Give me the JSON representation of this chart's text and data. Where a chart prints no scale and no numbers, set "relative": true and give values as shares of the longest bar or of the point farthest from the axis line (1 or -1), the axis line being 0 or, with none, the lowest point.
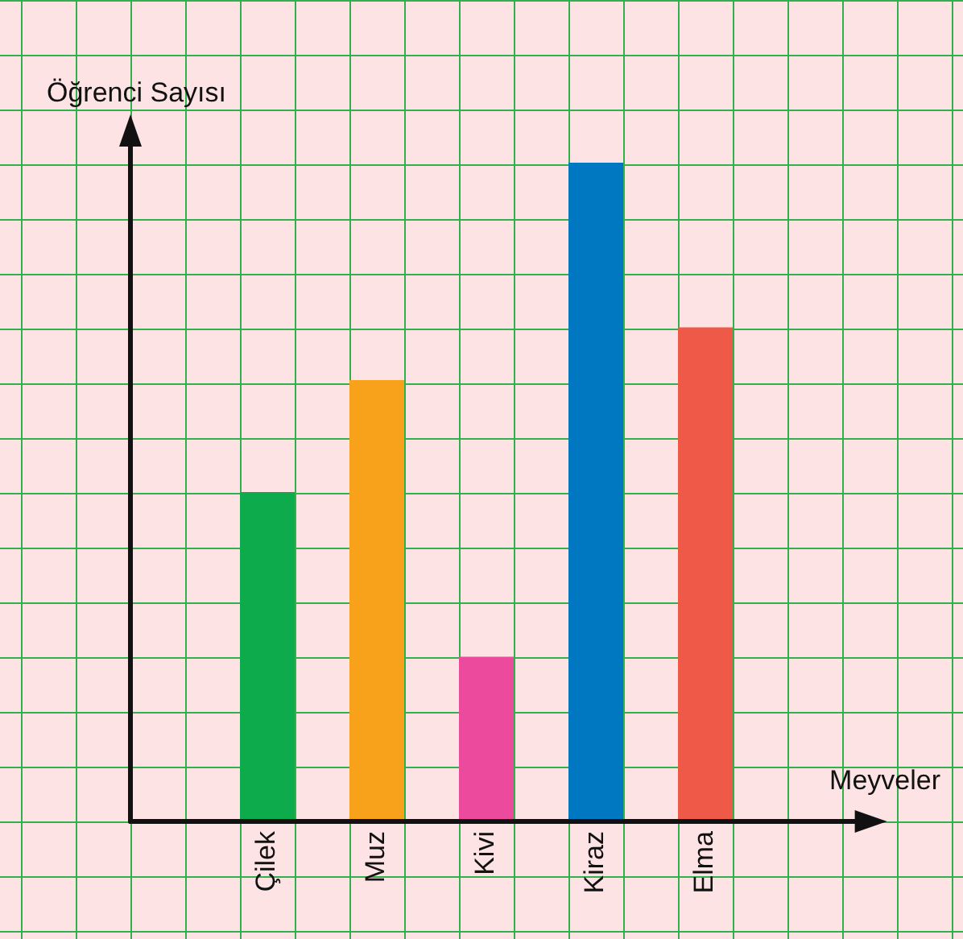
{
  "chart_data": {
    "type": "bar",
    "xlabel": "Meyveler",
    "ylabel": "Öğrenci Sayısı",
    "categories": [
      "Çilek",
      "Muz",
      "Kivi",
      "Kiraz",
      "Elma"
    ],
    "values": [
      0.5,
      0.67,
      0.25,
      1,
      0.75
    ],
    "colors": [
      "#0dab4b",
      "#f8a21c",
      "#ec4a9c",
      "#0078c1",
      "#ef5a48"
    ],
    "relative": true
  }
}
